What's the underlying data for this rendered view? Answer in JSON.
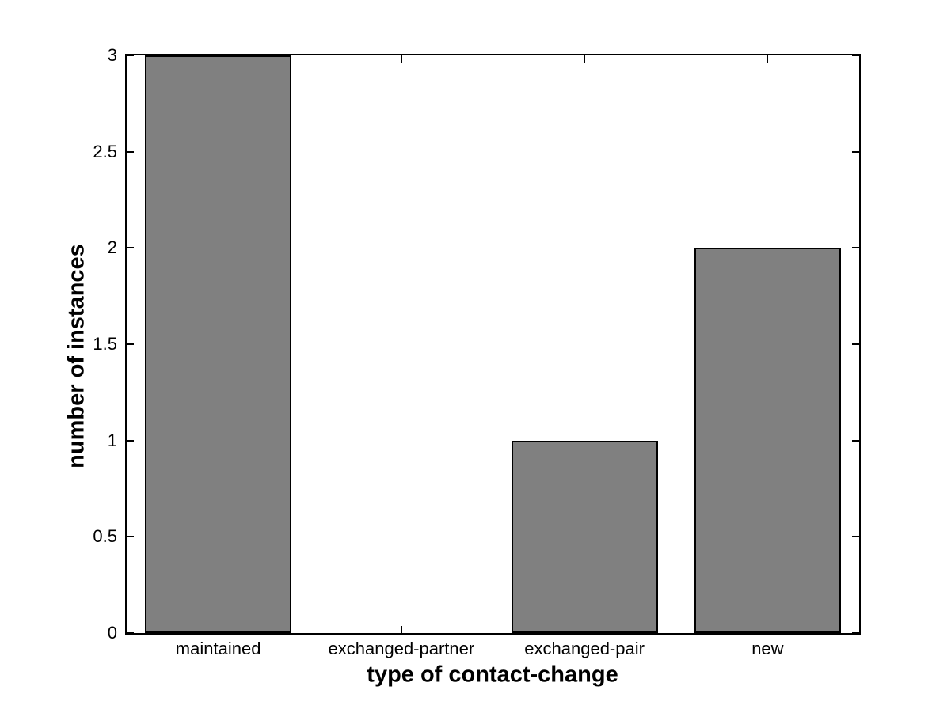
{
  "chart_data": {
    "type": "bar",
    "title": "",
    "categories": [
      "maintained",
      "exchanged-partner",
      "exchanged-pair",
      "new"
    ],
    "values": [
      3,
      0,
      1,
      2
    ],
    "xlabel": "type of contact-change",
    "ylabel": "number of instances",
    "ylim": [
      0,
      3
    ],
    "yticks": [
      0,
      0.5,
      1,
      1.5,
      2,
      2.5,
      3
    ],
    "ytick_labels": [
      "0",
      "0.5",
      "1",
      "1.5",
      "2",
      "2.5",
      "3"
    ],
    "bar_width_fraction": 0.8,
    "bar_color": "#808080",
    "bar_edge_color": "#000000",
    "axis_color": "#000000",
    "background_color": "#ffffff",
    "grid": false,
    "legend": false
  }
}
